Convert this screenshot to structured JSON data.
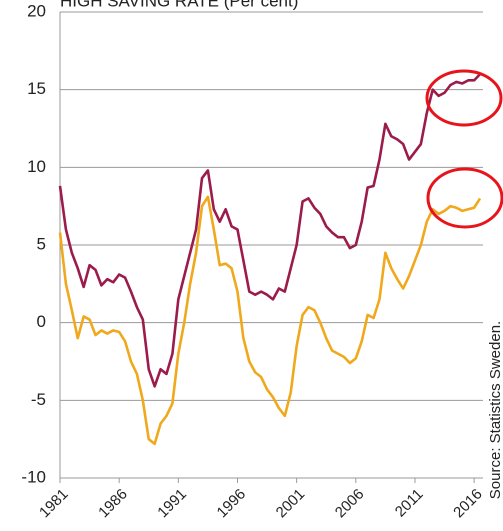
{
  "chart_data": {
    "type": "line",
    "title": "HIGH SAVING RATE (Per cent)",
    "source": "Source: Statistics Sweden.",
    "x": [
      1981,
      1981.5,
      1982,
      1982.5,
      1983,
      1983.5,
      1984,
      1984.5,
      1985,
      1985.5,
      1986,
      1986.5,
      1987,
      1987.5,
      1988,
      1988.5,
      1989,
      1989.5,
      1990,
      1990.5,
      1991,
      1991.5,
      1992,
      1992.5,
      1993,
      1993.5,
      1994,
      1994.5,
      1995,
      1995.5,
      1996,
      1996.5,
      1997,
      1997.5,
      1998,
      1998.5,
      1999,
      1999.5,
      2000,
      2000.5,
      2001,
      2001.5,
      2002,
      2002.5,
      2003,
      2003.5,
      2004,
      2004.5,
      2005,
      2005.5,
      2006,
      2006.5,
      2007,
      2007.5,
      2008,
      2008.5,
      2009,
      2009.5,
      2010,
      2010.5,
      2011,
      2011.5,
      2012,
      2012.5,
      2013,
      2013.5,
      2014,
      2014.5,
      2015,
      2015.5,
      2016,
      2016.5
    ],
    "series": [
      {
        "color": "#9b1b4b",
        "values": [
          8.8,
          6,
          4.5,
          3.5,
          2.3,
          3.7,
          3.4,
          2.4,
          2.8,
          2.6,
          3.1,
          2.9,
          2.0,
          1.0,
          0.2,
          -3,
          -4.1,
          -3,
          -3.3,
          -2,
          1.5,
          3,
          4.5,
          6,
          9.3,
          9.8,
          7.3,
          6.5,
          7.3,
          6.2,
          6.0,
          4,
          2.0,
          1.8,
          2.0,
          1.8,
          1.5,
          2.2,
          2.0,
          3.5,
          5.0,
          7.8,
          8.0,
          7.4,
          7.0,
          6.2,
          5.8,
          5.5,
          5.5,
          4.8,
          5.0,
          6.5,
          8.7,
          8.8,
          10.5,
          12.8,
          12.0,
          11.8,
          11.5,
          10.5,
          11.0,
          11.5,
          13.5,
          15,
          14.6,
          14.8,
          15.3,
          15.5,
          15.4,
          15.6,
          15.6,
          16.0
        ]
      },
      {
        "color": "#f0a81c",
        "values": [
          5.8,
          2.5,
          0.8,
          -1,
          0.4,
          0.2,
          -0.8,
          -0.5,
          -0.7,
          -0.5,
          -0.6,
          -1.2,
          -2.5,
          -3.3,
          -5,
          -7.5,
          -7.8,
          -6.5,
          -6,
          -5.2,
          -2,
          0,
          2.5,
          4.5,
          7.5,
          8.1,
          6,
          3.7,
          3.8,
          3.5,
          2,
          -1,
          -2.5,
          -3.2,
          -3.5,
          -4.3,
          -4.8,
          -5.5,
          -6,
          -4.5,
          -1.5,
          0.5,
          1,
          0.8,
          0,
          -1,
          -1.8,
          -2,
          -2.2,
          -2.6,
          -2.3,
          -1.2,
          0.5,
          0.3,
          1.5,
          4.5,
          3.5,
          2.8,
          2.2,
          3.0,
          4.0,
          5.0,
          6.5,
          7.3,
          7.0,
          7.2,
          7.5,
          7.4,
          7.2,
          7.3,
          7.4,
          8.0
        ]
      }
    ],
    "xlim": [
      1981,
      2016.75
    ],
    "xticks": [
      1981,
      1986,
      1991,
      1996,
      2001,
      2006,
      2011,
      2016
    ],
    "ylim": [
      -10,
      20
    ],
    "yticks": [
      -10,
      -5,
      0,
      5,
      10,
      15,
      20
    ],
    "grid": true
  }
}
